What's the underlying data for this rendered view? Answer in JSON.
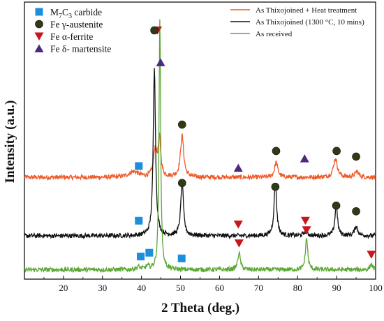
{
  "chart_data": {
    "type": "line",
    "xlabel": "2 Theta (deg.)",
    "ylabel": "Intensity (a.u.)",
    "xlim": [
      10,
      100
    ],
    "x_ticks": [
      20,
      30,
      40,
      50,
      60,
      70,
      80,
      90,
      100
    ],
    "y_ticks_shown": false,
    "phase_legend": [
      {
        "symbol": "square",
        "color": "#1a8fdc",
        "label_main": "M",
        "sub1": "7",
        "mid": "C",
        "sub2": "3",
        "tail": " carbide"
      },
      {
        "symbol": "circle",
        "color": "#2f3b14",
        "label": "Fe γ-austenite"
      },
      {
        "symbol": "triangle-down",
        "color": "#c8161d",
        "label": "Fe α-ferrite"
      },
      {
        "symbol": "triangle-up",
        "color": "#4b2a7d",
        "label": "Fe δ- martensite"
      }
    ],
    "series": [
      {
        "name": "As Thixojoined + Heat treatment",
        "color": "#f05a28",
        "baseline": 50,
        "peaks": [
          [
            43.5,
            14,
            0.5
          ],
          [
            44.6,
            20,
            0.4
          ],
          [
            50.4,
            22,
            0.5
          ],
          [
            74.5,
            8,
            0.5
          ],
          [
            89.7,
            10,
            0.6
          ],
          [
            95.2,
            3,
            0.6
          ],
          [
            38.0,
            3,
            1.5
          ]
        ],
        "markers": [
          {
            "shape": "square",
            "x": 39.3,
            "y": 56
          },
          {
            "shape": "triangle-down",
            "x": 44.1,
            "y": 128
          },
          {
            "shape": "triangle-up",
            "x": 44.9,
            "y": 111
          },
          {
            "shape": "circle",
            "x": 50.4,
            "y": 78
          },
          {
            "shape": "triangle-up",
            "x": 64.8,
            "y": 55
          },
          {
            "shape": "circle",
            "x": 74.5,
            "y": 64
          },
          {
            "shape": "triangle-up",
            "x": 81.8,
            "y": 60
          },
          {
            "shape": "circle",
            "x": 90.0,
            "y": 64
          },
          {
            "shape": "circle",
            "x": 95.0,
            "y": 61
          }
        ]
      },
      {
        "name": "As Thixojoined (1300 °C, 10 mins)",
        "color": "#111111",
        "baseline": 19,
        "peaks": [
          [
            43.3,
            90,
            0.35
          ],
          [
            50.4,
            29,
            0.4
          ],
          [
            74.3,
            28,
            0.4
          ],
          [
            89.9,
            16,
            0.4
          ],
          [
            95.0,
            5,
            0.5
          ],
          [
            82.0,
            2,
            0.6
          ]
        ],
        "markers": [
          {
            "shape": "square",
            "x": 39.3,
            "y": 27
          },
          {
            "shape": "circle",
            "x": 43.3,
            "y": 128
          },
          {
            "shape": "circle",
            "x": 50.4,
            "y": 47
          },
          {
            "shape": "triangle-down",
            "x": 64.8,
            "y": 25
          },
          {
            "shape": "circle",
            "x": 74.3,
            "y": 45
          },
          {
            "shape": "triangle-down",
            "x": 82.0,
            "y": 27
          },
          {
            "shape": "circle",
            "x": 89.9,
            "y": 35
          },
          {
            "shape": "circle",
            "x": 95.0,
            "y": 32
          }
        ]
      },
      {
        "name": "As received",
        "color": "#5aa832",
        "baseline": 1,
        "peaks": [
          [
            44.7,
            133,
            0.25
          ],
          [
            65.0,
            9,
            0.4
          ],
          [
            82.3,
            17,
            0.35
          ],
          [
            98.9,
            3,
            0.4
          ],
          [
            39.2,
            1.5,
            0.5
          ],
          [
            41.5,
            1.5,
            0.5
          ]
        ],
        "markers": [
          {
            "shape": "square",
            "x": 39.8,
            "y": 8
          },
          {
            "shape": "square",
            "x": 42.0,
            "y": 10
          },
          {
            "shape": "square",
            "x": 50.3,
            "y": 7
          },
          {
            "shape": "triangle-down",
            "x": 65.0,
            "y": 15
          },
          {
            "shape": "triangle-down",
            "x": 82.3,
            "y": 22
          },
          {
            "shape": "triangle-down",
            "x": 98.9,
            "y": 9
          }
        ]
      }
    ],
    "y_range": [
      -4,
      143
    ]
  }
}
